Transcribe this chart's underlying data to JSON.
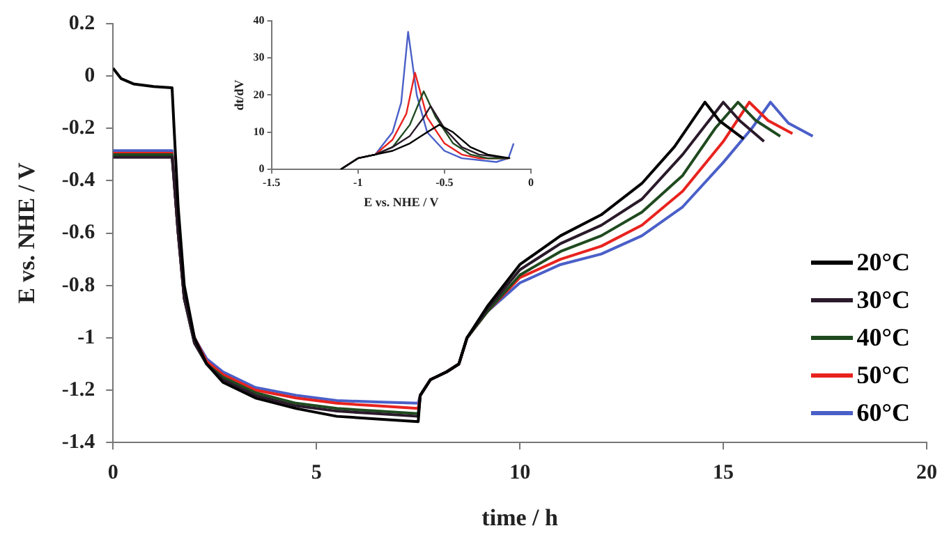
{
  "chart_data": [
    {
      "type": "line",
      "xlabel": "time / h",
      "ylabel": "E vs. NHE / V",
      "xlim": [
        0,
        20
      ],
      "xticks": [
        0,
        5,
        10,
        15,
        20
      ],
      "ylim": [
        -1.4,
        0.2
      ],
      "yticks": [
        0.2,
        0,
        -0.2,
        -0.4,
        -0.6,
        -0.8,
        -1,
        -1.2,
        -1.4
      ],
      "grid": false,
      "legend": "bottom right",
      "marker": "none",
      "line_style": "solid",
      "series": [
        {
          "name": "20°C",
          "color": "#000000",
          "x": [
            0,
            0.2,
            0.5,
            1,
            1.45,
            1.5,
            1.6,
            1.75,
            2,
            2.3,
            2.7,
            3.5,
            4.5,
            5.5,
            6.5,
            7.5,
            7.55,
            7.8,
            8.2,
            8.5,
            8.7,
            9.2,
            10,
            11,
            12,
            13,
            13.8,
            14.55,
            14.9,
            15.5
          ],
          "values": [
            0.03,
            -0.01,
            -0.03,
            -0.04,
            -0.045,
            -0.2,
            -0.5,
            -0.8,
            -1.0,
            -1.1,
            -1.17,
            -1.23,
            -1.27,
            -1.3,
            -1.31,
            -1.32,
            -1.22,
            -1.16,
            -1.13,
            -1.1,
            -1.0,
            -0.88,
            -0.72,
            -0.61,
            -0.53,
            -0.41,
            -0.27,
            -0.1,
            -0.17,
            -0.24
          ]
        },
        {
          "name": "30°C",
          "color": "#2a1a2a",
          "x": [
            0,
            1.45,
            1.5,
            1.6,
            1.75,
            2,
            2.3,
            2.7,
            3.5,
            4.5,
            5.5,
            6.5,
            7.5,
            7.55,
            7.8,
            8.2,
            8.5,
            8.7,
            9.2,
            10,
            11,
            12,
            13,
            14,
            15,
            15.4,
            16
          ],
          "values": [
            -0.31,
            -0.31,
            -0.4,
            -0.6,
            -0.85,
            -1.02,
            -1.1,
            -1.16,
            -1.22,
            -1.26,
            -1.28,
            -1.29,
            -1.3,
            -1.22,
            -1.16,
            -1.13,
            -1.1,
            -1.0,
            -0.89,
            -0.74,
            -0.64,
            -0.57,
            -0.47,
            -0.3,
            -0.1,
            -0.17,
            -0.25
          ]
        },
        {
          "name": "40°C",
          "color": "#1f4a1f",
          "x": [
            0,
            1.45,
            1.5,
            1.6,
            1.75,
            2,
            2.3,
            2.7,
            3.5,
            4.5,
            5.5,
            6.5,
            7.5,
            7.55,
            7.8,
            8.2,
            8.5,
            8.7,
            9.2,
            10,
            11,
            12,
            13,
            14,
            14.8,
            15.36,
            15.8,
            16.4
          ],
          "values": [
            -0.3,
            -0.3,
            -0.4,
            -0.6,
            -0.85,
            -1.02,
            -1.1,
            -1.15,
            -1.21,
            -1.25,
            -1.27,
            -1.28,
            -1.29,
            -1.22,
            -1.16,
            -1.13,
            -1.1,
            -1.0,
            -0.9,
            -0.76,
            -0.67,
            -0.61,
            -0.52,
            -0.38,
            -0.2,
            -0.1,
            -0.17,
            -0.23
          ]
        },
        {
          "name": "50°C",
          "color": "#e8231f",
          "x": [
            0,
            1.45,
            1.5,
            1.6,
            1.75,
            2,
            2.3,
            2.7,
            3.5,
            4.5,
            5.5,
            6.5,
            7.5,
            7.55,
            7.8,
            8.2,
            8.5,
            8.7,
            9.2,
            10,
            11,
            12,
            13,
            14,
            15,
            15.64,
            16.1,
            16.7
          ],
          "values": [
            -0.295,
            -0.295,
            -0.4,
            -0.6,
            -0.85,
            -1.0,
            -1.09,
            -1.14,
            -1.2,
            -1.23,
            -1.25,
            -1.26,
            -1.27,
            -1.22,
            -1.16,
            -1.13,
            -1.1,
            -1.0,
            -0.9,
            -0.77,
            -0.7,
            -0.65,
            -0.57,
            -0.44,
            -0.25,
            -0.1,
            -0.17,
            -0.22
          ]
        },
        {
          "name": "60°C",
          "color": "#4a5fc8",
          "x": [
            0,
            1.45,
            1.5,
            1.6,
            1.75,
            2,
            2.3,
            2.7,
            3.5,
            4.5,
            5.5,
            6.5,
            7.5,
            7.55,
            7.8,
            8.2,
            8.5,
            8.7,
            9.2,
            10,
            11,
            12,
            13,
            14,
            15,
            15.7,
            16.16,
            16.6,
            17.2
          ],
          "values": [
            -0.285,
            -0.285,
            -0.4,
            -0.6,
            -0.85,
            -1.0,
            -1.08,
            -1.13,
            -1.19,
            -1.22,
            -1.24,
            -1.245,
            -1.25,
            -1.22,
            -1.16,
            -1.13,
            -1.1,
            -1.0,
            -0.9,
            -0.79,
            -0.72,
            -0.68,
            -0.61,
            -0.5,
            -0.33,
            -0.2,
            -0.1,
            -0.18,
            -0.23
          ]
        }
      ]
    },
    {
      "type": "line",
      "xlabel": "E vs. NHE / V",
      "ylabel": "dt/dV",
      "xlim": [
        -1.5,
        0
      ],
      "xticks": [
        -1.5,
        -1,
        -0.5,
        0
      ],
      "ylim": [
        0,
        40
      ],
      "yticks": [
        0,
        10,
        20,
        30,
        40
      ],
      "grid": false,
      "marker": "none",
      "line_style": "solid",
      "series": [
        {
          "color": "#000000",
          "x": [
            -1.1,
            -1.0,
            -0.9,
            -0.8,
            -0.7,
            -0.6,
            -0.53,
            -0.45,
            -0.35,
            -0.25,
            -0.12
          ],
          "values": [
            0,
            3,
            4,
            5,
            7,
            10,
            12,
            10,
            6,
            4,
            3
          ]
        },
        {
          "color": "#2a1a2a",
          "x": [
            -1.1,
            -1.0,
            -0.9,
            -0.8,
            -0.7,
            -0.62,
            -0.58,
            -0.5,
            -0.4,
            -0.3,
            -0.13
          ],
          "values": [
            0,
            3,
            4,
            6,
            9,
            14,
            17,
            11,
            6,
            4,
            3
          ]
        },
        {
          "color": "#1f4a1f",
          "x": [
            -1.1,
            -1.0,
            -0.9,
            -0.8,
            -0.7,
            -0.62,
            -0.55,
            -0.45,
            -0.35,
            -0.25,
            -0.13
          ],
          "values": [
            0,
            3,
            4,
            6,
            12,
            21,
            14,
            7,
            4,
            3,
            3
          ]
        },
        {
          "color": "#e8231f",
          "x": [
            -1.1,
            -1.0,
            -0.9,
            -0.8,
            -0.72,
            -0.67,
            -0.6,
            -0.5,
            -0.4,
            -0.3,
            -0.13
          ],
          "values": [
            0,
            3,
            4,
            8,
            15,
            26,
            14,
            7,
            4,
            3,
            3
          ]
        },
        {
          "color": "#4a5fc8",
          "x": [
            -1.1,
            -1.0,
            -0.9,
            -0.8,
            -0.75,
            -0.71,
            -0.66,
            -0.6,
            -0.5,
            -0.4,
            -0.2,
            -0.13,
            -0.1
          ],
          "values": [
            0,
            3,
            4,
            10,
            18,
            37,
            20,
            10,
            5,
            3,
            2,
            3,
            7
          ]
        }
      ]
    }
  ]
}
